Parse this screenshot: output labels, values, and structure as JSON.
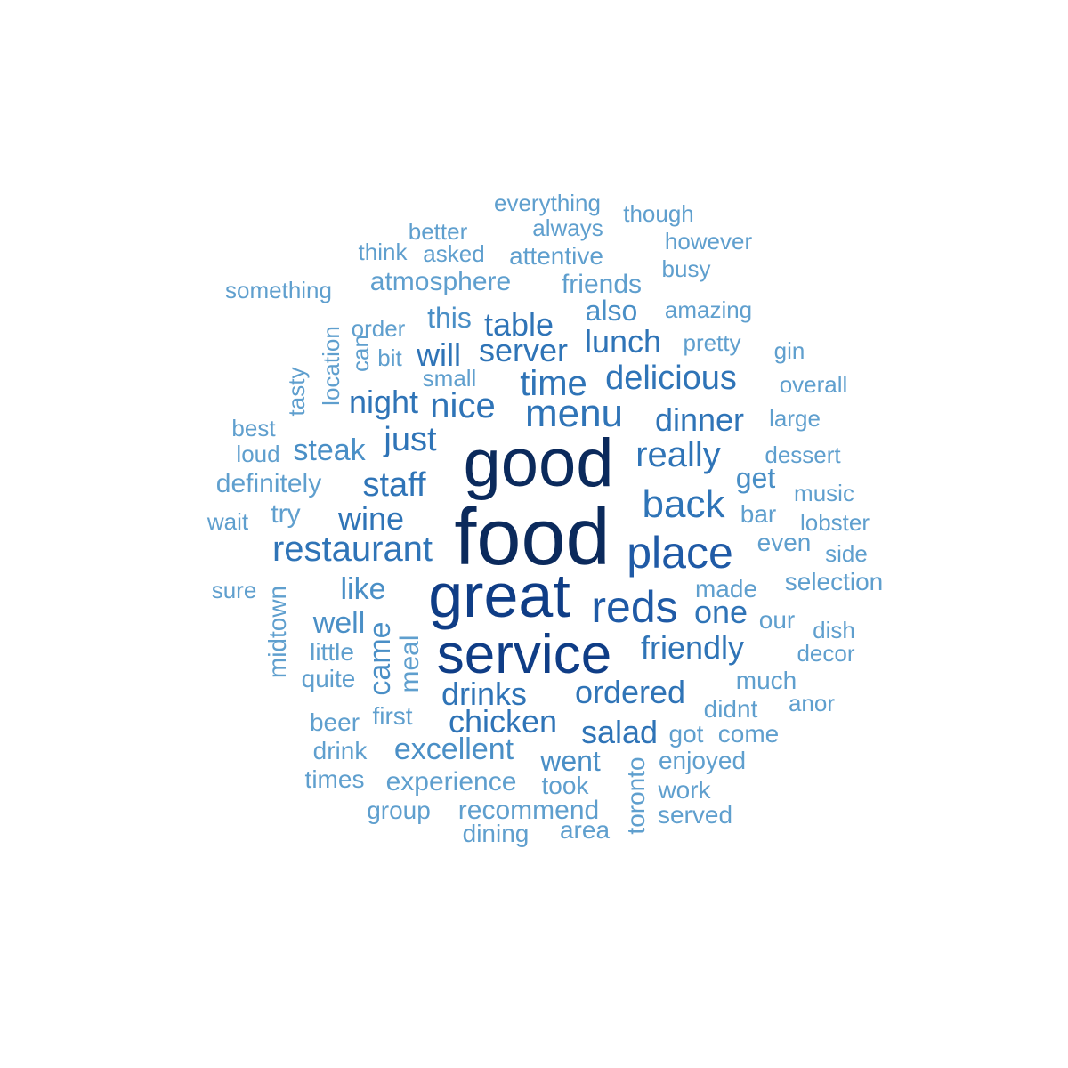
{
  "word_cloud": {
    "words": [
      {
        "text": "food",
        "tier": 1
      },
      {
        "text": "good",
        "tier": 1
      },
      {
        "text": "great",
        "tier": 2
      },
      {
        "text": "service",
        "tier": 2
      },
      {
        "text": "place",
        "tier": 3
      },
      {
        "text": "reds",
        "tier": 3
      },
      {
        "text": "menu",
        "tier": 4
      },
      {
        "text": "back",
        "tier": 4
      },
      {
        "text": "time",
        "tier": 4
      },
      {
        "text": "restaurant",
        "tier": 4
      },
      {
        "text": "nice",
        "tier": 4
      },
      {
        "text": "really",
        "tier": 4
      },
      {
        "text": "staff",
        "tier": 4
      },
      {
        "text": "just",
        "tier": 4
      },
      {
        "text": "delicious",
        "tier": 4
      },
      {
        "text": "friendly",
        "tier": 4
      },
      {
        "text": "chicken",
        "tier": 4
      },
      {
        "text": "ordered",
        "tier": 4
      },
      {
        "text": "drinks",
        "tier": 4
      },
      {
        "text": "wine",
        "tier": 4
      },
      {
        "text": "server",
        "tier": 4
      },
      {
        "text": "lunch",
        "tier": 4
      },
      {
        "text": "dinner",
        "tier": 4
      },
      {
        "text": "night",
        "tier": 4
      },
      {
        "text": "table",
        "tier": 4
      },
      {
        "text": "salad",
        "tier": 4
      },
      {
        "text": "will",
        "tier": 4
      },
      {
        "text": "one",
        "tier": 4
      },
      {
        "text": "like",
        "tier": 5
      },
      {
        "text": "well",
        "tier": 5
      },
      {
        "text": "steak",
        "tier": 5
      },
      {
        "text": "excellent",
        "tier": 5
      },
      {
        "text": "came",
        "tier": 5
      },
      {
        "text": "went",
        "tier": 5
      },
      {
        "text": "this",
        "tier": 5
      },
      {
        "text": "also",
        "tier": 5
      },
      {
        "text": "get",
        "tier": 5
      },
      {
        "text": "atmosphere",
        "tier": 6
      },
      {
        "text": "friends",
        "tier": 6
      },
      {
        "text": "attentive",
        "tier": 6
      },
      {
        "text": "always",
        "tier": 6
      },
      {
        "text": "everything",
        "tier": 6
      },
      {
        "text": "though",
        "tier": 6
      },
      {
        "text": "better",
        "tier": 6
      },
      {
        "text": "think",
        "tier": 6
      },
      {
        "text": "asked",
        "tier": 6
      },
      {
        "text": "however",
        "tier": 6
      },
      {
        "text": "busy",
        "tier": 6
      },
      {
        "text": "something",
        "tier": 6
      },
      {
        "text": "amazing",
        "tier": 6
      },
      {
        "text": "order",
        "tier": 6
      },
      {
        "text": "location",
        "tier": 6
      },
      {
        "text": "can",
        "tier": 6
      },
      {
        "text": "bit",
        "tier": 6
      },
      {
        "text": "pretty",
        "tier": 6
      },
      {
        "text": "gin",
        "tier": 6
      },
      {
        "text": "small",
        "tier": 6
      },
      {
        "text": "tasty",
        "tier": 6
      },
      {
        "text": "overall",
        "tier": 6
      },
      {
        "text": "large",
        "tier": 6
      },
      {
        "text": "best",
        "tier": 6
      },
      {
        "text": "loud",
        "tier": 6
      },
      {
        "text": "dessert",
        "tier": 6
      },
      {
        "text": "definitely",
        "tier": 6
      },
      {
        "text": "music",
        "tier": 6
      },
      {
        "text": "wait",
        "tier": 6
      },
      {
        "text": "try",
        "tier": 6
      },
      {
        "text": "bar",
        "tier": 6
      },
      {
        "text": "lobster",
        "tier": 6
      },
      {
        "text": "even",
        "tier": 6
      },
      {
        "text": "side",
        "tier": 6
      },
      {
        "text": "sure",
        "tier": 6
      },
      {
        "text": "made",
        "tier": 6
      },
      {
        "text": "selection",
        "tier": 6
      },
      {
        "text": "midtown",
        "tier": 6
      },
      {
        "text": "our",
        "tier": 6
      },
      {
        "text": "dish",
        "tier": 6
      },
      {
        "text": "little",
        "tier": 6
      },
      {
        "text": "meal",
        "tier": 6
      },
      {
        "text": "decor",
        "tier": 6
      },
      {
        "text": "quite",
        "tier": 6
      },
      {
        "text": "much",
        "tier": 6
      },
      {
        "text": "first",
        "tier": 6
      },
      {
        "text": "didnt",
        "tier": 6
      },
      {
        "text": "anor",
        "tier": 6
      },
      {
        "text": "beer",
        "tier": 6
      },
      {
        "text": "got",
        "tier": 6
      },
      {
        "text": "come",
        "tier": 6
      },
      {
        "text": "drink",
        "tier": 6
      },
      {
        "text": "toronto",
        "tier": 6
      },
      {
        "text": "enjoyed",
        "tier": 6
      },
      {
        "text": "times",
        "tier": 6
      },
      {
        "text": "experience",
        "tier": 6
      },
      {
        "text": "took",
        "tier": 6
      },
      {
        "text": "work",
        "tier": 6
      },
      {
        "text": "group",
        "tier": 6
      },
      {
        "text": "recommend",
        "tier": 6
      },
      {
        "text": "served",
        "tier": 6
      },
      {
        "text": "dining",
        "tier": 6
      },
      {
        "text": "area",
        "tier": 6
      }
    ]
  }
}
